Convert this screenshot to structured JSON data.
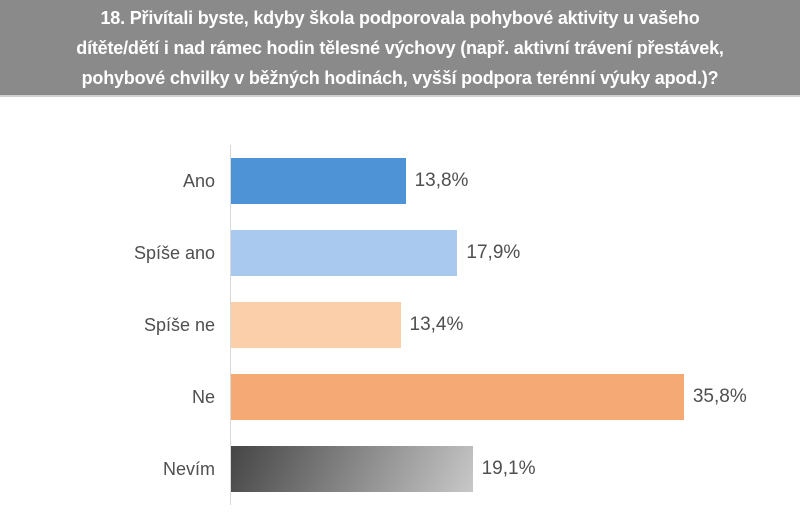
{
  "title": {
    "text": "18. Přivítali byste, kdyby škola podporovala pohybové aktivity u vašeho\ndítěte/dětí i nad rámec hodin tělesné výchovy (např. aktivní trávení přestávek,\npohybové chvilky v běžných hodinách, vyšší podpora terénní výuky apod.)?"
  },
  "colors": {
    "banner_background": "#8a8a8a",
    "banner_text": "#ffffff",
    "axis_line": "#d9d9d9",
    "label_text": "#4f4f4f"
  },
  "chart_data": {
    "type": "bar",
    "orientation": "horizontal",
    "title": "18. Přivítali byste, kdyby škola podporovala pohybové aktivity u vašeho dítěte/dětí i nad rámec hodin tělesné výchovy (např. aktivní trávení přestávek, pohybové chvilky v běžných hodinách, vyšší podpora terénní výuky apod.)?",
    "categories": [
      "Ano",
      "Spíše ano",
      "Spíše ne",
      "Ne",
      "Nevím"
    ],
    "values": [
      13.8,
      17.9,
      13.4,
      35.8,
      19.1
    ],
    "value_labels": [
      "13,8%",
      "17,9%",
      "13,4%",
      "35,8%",
      "19,1%"
    ],
    "bar_colors": [
      "#4f93d7",
      "#a9caee",
      "#fbcfa9",
      "#f5a974",
      {
        "gradient": [
          "#454545",
          "#c8c8c8"
        ],
        "angle": "115deg"
      }
    ],
    "xlabel": "",
    "ylabel": "",
    "xlim": [
      0,
      40
    ],
    "grid": false,
    "legend": false,
    "value_label_position": "outside-end"
  }
}
